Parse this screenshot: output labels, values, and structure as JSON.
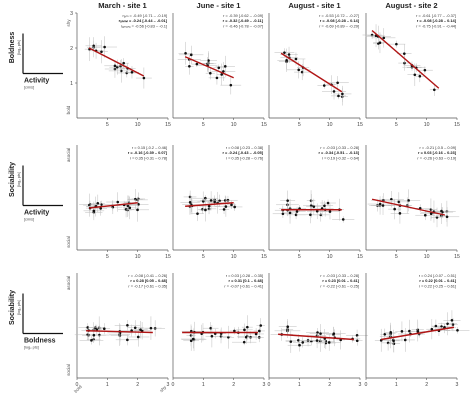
{
  "columns": [
    "March - site 1",
    "June - site 1",
    "August - site 1",
    "August - site 2"
  ],
  "rows": [
    {
      "y_variable": "Boldness",
      "y_unit": "[log₂ pts]",
      "x_variable": "Activity",
      "x_unit": "[cm/s]",
      "y_ticks": [
        "1",
        "2",
        "3"
      ],
      "y_top_label": "shy",
      "y_bottom_label": "bold",
      "x_ticks": [
        "5",
        "10",
        "15"
      ]
    },
    {
      "y_variable": "Sociability",
      "y_unit": "[log₂ pts]",
      "x_variable": "Activity",
      "x_unit": "[cm/s]",
      "y_ticks": [],
      "y_top_label": "asocial",
      "y_bottom_label": "social",
      "x_ticks": [
        "5",
        "10",
        "15"
      ]
    },
    {
      "y_variable": "Sociability",
      "y_unit": "[log₂ pts]",
      "x_variable": "Boldness",
      "x_unit": "[log₂ pts]",
      "y_ticks": [],
      "y_top_label": "asocial",
      "y_bottom_label": "social",
      "x_ticks": [
        "0",
        "1",
        "2",
        "3"
      ],
      "x_left_label": "bold",
      "x_right_label": "shy"
    }
  ],
  "stats": [
    [
      [
        "rₐₙₙ = -0.49 [-0.71 – -0.19]",
        "rₒₙₙₙₙ = -0.24 [-0.44 – -0.01]",
        "rₐₘₒₙ₉ = -0.56 [-0.83 – -0.1]"
      ],
      [
        "r = -0.39 [-0.62 – -0.09]",
        "r = -0.32 [-0.49 – -0.11]",
        "r = -0.46 [-0.78 – -0.07]"
      ],
      [
        "r = -0.53 [-0.72 – -0.27]",
        "r = -0.08 [-0.28 – 0.14]",
        "r = -0.69 [-0.89 – -0.29]"
      ],
      [
        "r = -0.61 [-0.77 – -0.37]",
        "r = -0.08 [-0.28 – 0.14]",
        "r = -0.75 [-0.91 – -0.44]"
      ]
    ],
    [
      [
        "r = 0.15 [-0.2 – 0.46]",
        "r = -0.16 [-0.39 – 0.07]",
        "r = 0.35 [-0.31 – 0.78]"
      ],
      [
        "r = 0.08 [-0.23 – 0.38]",
        "r = -0.24 [-0.43 – -0.05]",
        "r = 0.35 [-0.28 – 0.76]"
      ],
      [
        "r = -0.03 [-0.33 – 0.28]",
        "r = -0.34 [-0.51 – -0.13]",
        "r = 0.19 [-0.32 – 0.64]"
      ],
      [
        "r = -0.21 [-0.5 – 0.09]",
        "r = 0.03 [-0.16 – 0.23]",
        "r = -0.26 [-0.63 – 0.19]"
      ]
    ],
    [
      [
        "r = -0.08 [-0.41 – 0.26]",
        "r = 0.28 [0.05 – 0.48]",
        "r = -0.17 [-0.61 – 0.35]"
      ],
      [
        "r = 0.03 [-0.28 – 0.35]",
        "r = 0.31 [0.1 – 0.48]",
        "r = -0.07 [-0.61 – 0.41]"
      ],
      [
        "r = -0.03 [-0.33 – 0.28]",
        "r = 0.23 [0.01 – 0.41]",
        "r = -0.22 [-0.61 – 0.25]"
      ],
      [
        "r = 0.24 [-0.07 – 0.51]",
        "r = 0.22 [0.01 – 0.41]",
        "r = 0.22 [-0.25 – 0.61]"
      ]
    ]
  ],
  "colors": {
    "fit_line": "#b01515",
    "points": "#111111",
    "error_bars": "#bdbdbd",
    "axes": "#555555"
  },
  "chart_data": {
    "type": "scatter",
    "layout": "3 rows x 4 columns",
    "rows": [
      {
        "xlim": [
          0,
          15
        ],
        "ylim": [
          0,
          3
        ],
        "panels": [
          {
            "fit": [
              [
                2,
                2.0
              ],
              [
                11,
                1.2
              ]
            ]
          },
          {
            "fit": [
              [
                2,
                1.75
              ],
              [
                10,
                1.15
              ]
            ]
          },
          {
            "fit": [
              [
                2,
                1.85
              ],
              [
                12,
                0.75
              ]
            ]
          },
          {
            "fit": [
              [
                1,
                2.5
              ],
              [
                12,
                0.85
              ]
            ]
          }
        ]
      },
      {
        "xlim": [
          0,
          15
        ],
        "ylim": [
          0,
          3
        ],
        "panels": [
          {
            "fit": [
              [
                2,
                1.2
              ],
              [
                10,
                1.35
              ]
            ]
          },
          {
            "fit": [
              [
                2,
                1.25
              ],
              [
                10,
                1.35
              ]
            ]
          },
          {
            "fit": [
              [
                2,
                1.15
              ],
              [
                12,
                1.15
              ]
            ]
          },
          {
            "fit": [
              [
                1,
                1.45
              ],
              [
                13,
                1.0
              ]
            ]
          }
        ]
      },
      {
        "xlim": [
          0,
          3
        ],
        "ylim": [
          0,
          3
        ],
        "panels": [
          {
            "fit": [
              [
                0.3,
                1.35
              ],
              [
                2.5,
                1.3
              ]
            ]
          },
          {
            "fit": [
              [
                0.3,
                1.3
              ],
              [
                2.8,
                1.3
              ]
            ]
          },
          {
            "fit": [
              [
                0.3,
                1.25
              ],
              [
                2.8,
                1.1
              ]
            ]
          },
          {
            "fit": [
              [
                0.5,
                1.1
              ],
              [
                2.9,
                1.45
              ]
            ]
          }
        ]
      }
    ]
  }
}
